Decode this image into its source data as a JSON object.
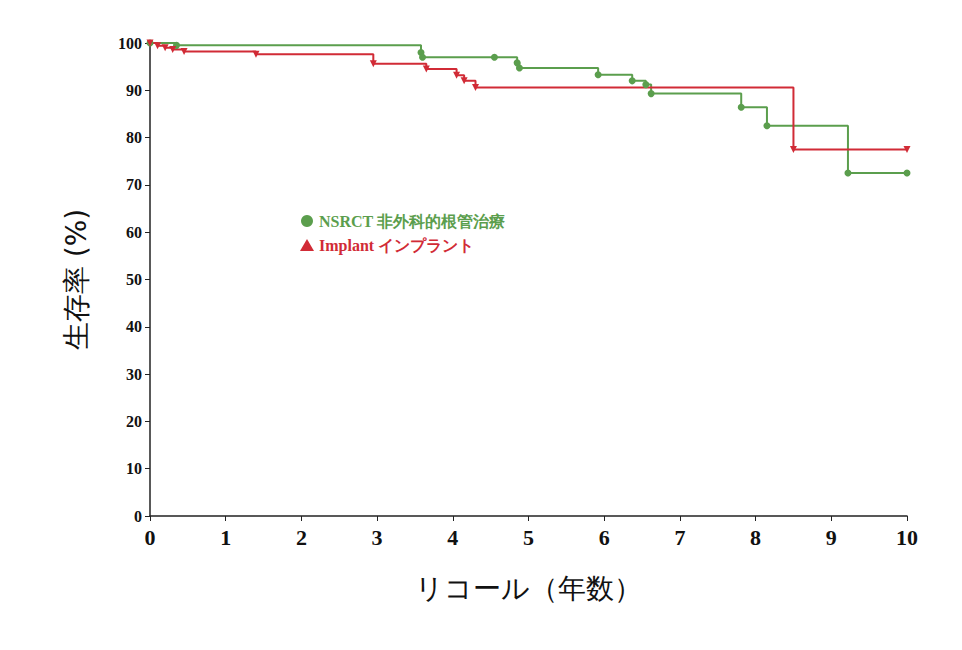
{
  "chart_data": {
    "type": "line",
    "y_label": "生存率 (%)",
    "x_label": "リコール（年数）",
    "xlim": [
      0,
      10
    ],
    "xticks": [
      0,
      1,
      2,
      3,
      4,
      5,
      6,
      7,
      8,
      9,
      10
    ],
    "ylim": [
      0,
      100
    ],
    "yticks": [
      0,
      10,
      20,
      30,
      40,
      50,
      60,
      70,
      80,
      90,
      100
    ],
    "grid": false,
    "legend": "left",
    "line_style": "step",
    "series": [
      {
        "name": "NSRCT 非外科的根管治療",
        "color": "#5b9e4d",
        "marker": "circle",
        "x": [
          0,
          0.35,
          3.58,
          3.6,
          4.55,
          4.85,
          4.88,
          5.92,
          6.37,
          6.55,
          6.62,
          7.81,
          8.15,
          9.22,
          10
        ],
        "values": [
          100,
          99.5,
          98,
          97,
          97,
          95.8,
          94.7,
          93.3,
          92,
          91.2,
          89.3,
          86.4,
          82.5,
          72.5,
          72.5
        ]
      },
      {
        "name": "Implant インプラント",
        "color": "#d12b36",
        "marker": "triangle-down",
        "x": [
          0,
          0.1,
          0.2,
          0.3,
          0.45,
          1.4,
          2.95,
          3.65,
          4.05,
          4.15,
          4.3,
          8.5,
          10
        ],
        "values": [
          100,
          99.4,
          99,
          98.6,
          98.2,
          97.6,
          95.6,
          94.5,
          93.2,
          92,
          90.6,
          77.5,
          77.5
        ]
      }
    ]
  }
}
